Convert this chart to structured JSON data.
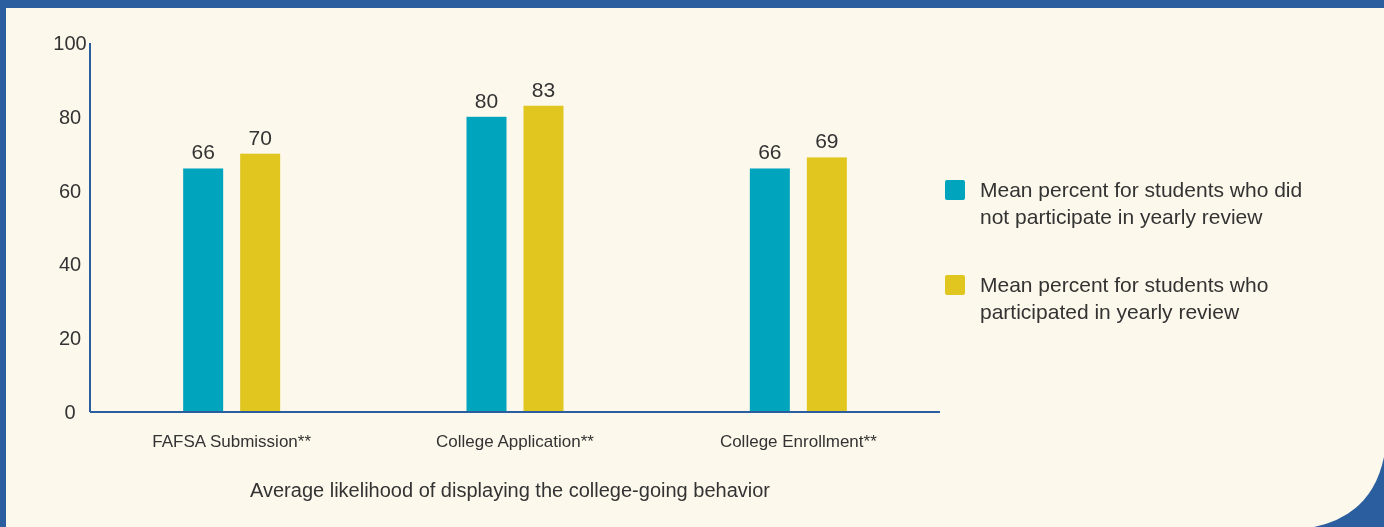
{
  "chart_data": {
    "type": "bar",
    "xlabel": "Average likelihood of displaying the college-going behavior",
    "categories": [
      "FAFSA Submission**",
      "College Application**",
      "College Enrollment**"
    ],
    "series": [
      {
        "name": "Mean percent for students who did not participate in yearly review",
        "color": "#00a5bd",
        "values": [
          66,
          80,
          66
        ]
      },
      {
        "name": "Mean percent for students who participated in yearly review",
        "color": "#e2c620",
        "values": [
          70,
          83,
          69
        ]
      }
    ],
    "ylim": [
      0,
      100
    ],
    "yticks": [
      0,
      20,
      40,
      60,
      80,
      100
    ],
    "data_labels": true,
    "grid": false,
    "legend": "right"
  }
}
